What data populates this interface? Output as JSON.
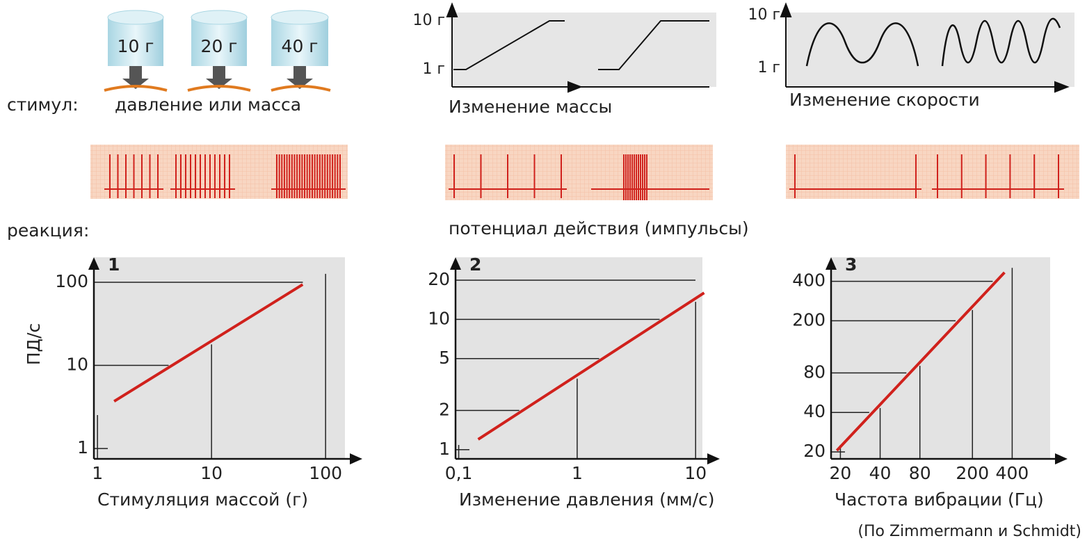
{
  "stimulus": {
    "weights": [
      "10 г",
      "20 г",
      "40 г"
    ],
    "label": "стимул:",
    "caption": "давление или масса"
  },
  "mass_graph": {
    "y_labels": [
      "10 г",
      "1 г"
    ],
    "caption": "Изменение массы"
  },
  "speed_graph": {
    "y_labels": [
      "10 г",
      "1 г"
    ],
    "caption": "Изменение скорости"
  },
  "response": {
    "label": "реакция:",
    "caption": "потенциал действия (импульсы)"
  },
  "source": "(По Zimmermann и Schmidt)",
  "chart_data": [
    {
      "type": "line",
      "title": "1",
      "y_label": "ПД/с",
      "x_label": "Стимуляция массой (г)",
      "x": [
        1.4,
        63
      ],
      "values": [
        3.7,
        94
      ],
      "color": "#d0211c",
      "log_x": true,
      "log_y": true,
      "xlim": [
        0.93,
        210
      ],
      "ylim": [
        0.75,
        200
      ],
      "xticks": [
        1,
        10,
        100
      ],
      "yticks": [
        1,
        10,
        100
      ]
    },
    {
      "type": "line",
      "title": "2",
      "x_label": "Изменение давления (мм/с)",
      "x": [
        0.146,
        11.8
      ],
      "values": [
        1.2,
        16
      ],
      "color": "#d0211c",
      "log_x": true,
      "log_y": true,
      "xlim": [
        0.094,
        16
      ],
      "ylim": [
        0.85,
        30
      ],
      "xticks": [
        {
          "value": 0.1,
          "label": "0,1"
        },
        1,
        10
      ],
      "yticks": [
        1,
        2,
        5,
        10,
        20
      ]
    },
    {
      "type": "line",
      "title": "3",
      "x_label": "Частота вибрации (Гц)",
      "x": [
        18.8,
        350
      ],
      "values": [
        20.5,
        467
      ],
      "color": "#d0211c",
      "log_x": true,
      "log_y": true,
      "xlim": [
        17,
        1050
      ],
      "ylim": [
        17.7,
        610
      ],
      "xticks": [
        20,
        40,
        80,
        200,
        400
      ],
      "yticks": [
        20,
        40,
        80,
        200,
        400
      ]
    }
  ]
}
